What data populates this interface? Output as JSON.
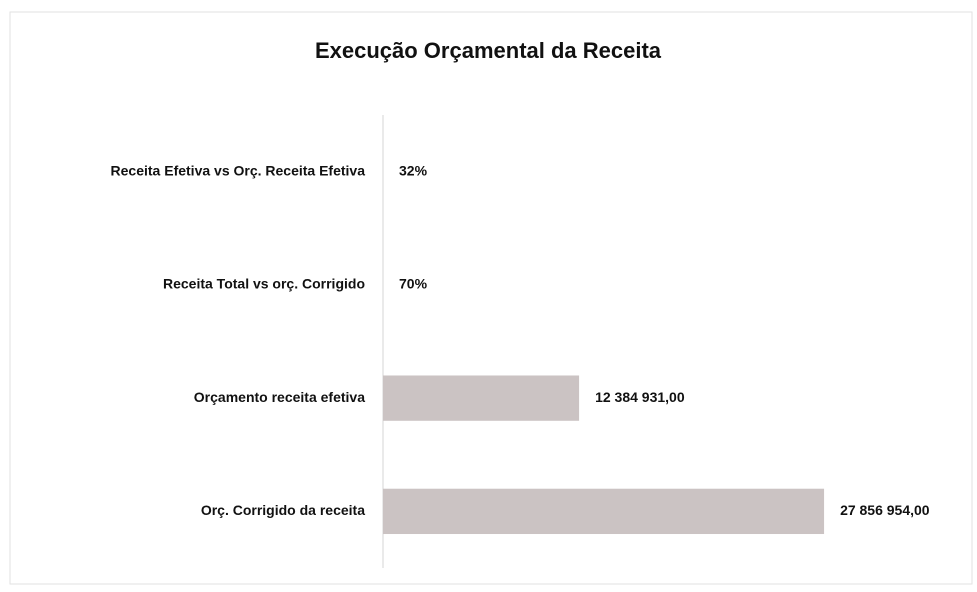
{
  "chart_data": {
    "type": "barh",
    "title": "Execução Orçamental da Receita",
    "categories": [
      "Receita Efetiva vs Orç. Receita Efetiva",
      "Receita Total vs orç. Corrigido",
      "Orçamento receita efetiva",
      "Orç. Corrigido da receita"
    ],
    "values": [
      0.32,
      0.7,
      12384931,
      27856954
    ],
    "value_labels": [
      "32%",
      "70%",
      "12 384 931,00",
      "27 856 954,00"
    ],
    "color": "#cbc3c3",
    "xlim": [
      0,
      30000000
    ]
  }
}
